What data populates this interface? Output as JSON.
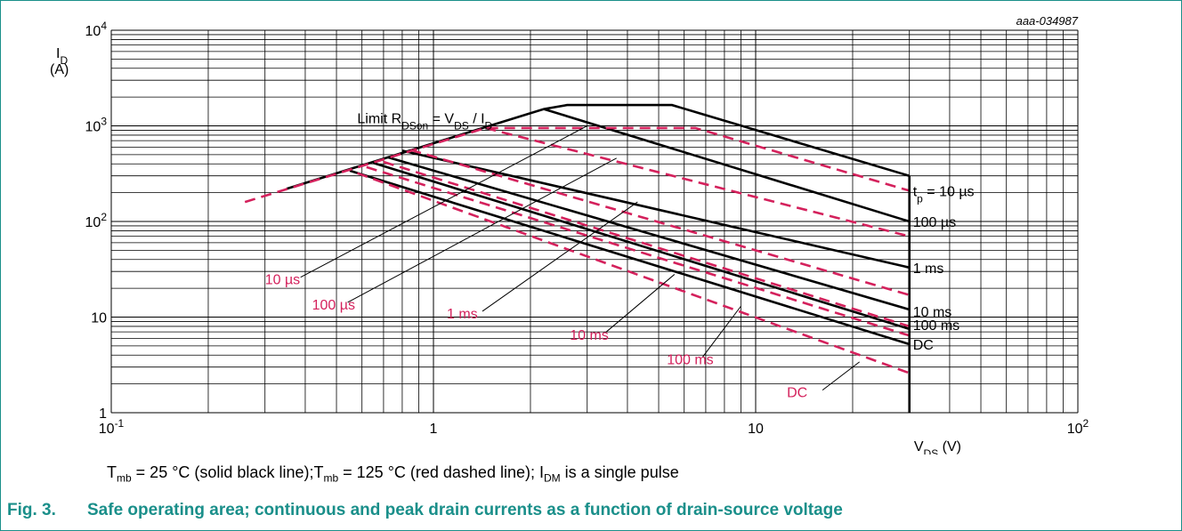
{
  "chart_data": {
    "type": "line",
    "figure_id": "aaa-034987",
    "xlabel_main": "V",
    "xlabel_sub": "DS",
    "xlabel_unit": " (V)",
    "ylabel_main": "I",
    "ylabel_sub": "D",
    "ylabel_unit": "(A)",
    "x_scale": "log",
    "y_scale": "log",
    "xlim": [
      0.1,
      100
    ],
    "ylim": [
      1,
      10000
    ],
    "grid": true,
    "x_ticks": [
      {
        "base": "10",
        "exp": "-1"
      },
      {
        "base": "1",
        "exp": ""
      },
      {
        "base": "10",
        "exp": ""
      },
      {
        "base": "10",
        "exp": "2"
      }
    ],
    "y_ticks": [
      {
        "base": "10",
        "exp": "4"
      },
      {
        "base": "10",
        "exp": "3"
      },
      {
        "base": "10",
        "exp": "2"
      },
      {
        "base": "10",
        "exp": ""
      },
      {
        "base": "1",
        "exp": ""
      }
    ],
    "limit_label": {
      "pre": "Limit R",
      "s1": "DSon",
      "mid": " = V",
      "s2": "DS",
      "mid2": " / I",
      "s3": "D"
    },
    "series": [
      {
        "name": "10 µs",
        "color": "#000000",
        "dash": false,
        "points": [
          [
            0.35,
            220
          ],
          [
            2.2,
            1500
          ],
          [
            2.6,
            1650
          ],
          [
            5.5,
            1650
          ],
          [
            30,
            300
          ]
        ]
      },
      {
        "name": "100 µs",
        "color": "#000000",
        "dash": false,
        "points": [
          [
            2.2,
            1500
          ],
          [
            30,
            100
          ]
        ]
      },
      {
        "name": "1 ms",
        "color": "#000000",
        "dash": false,
        "points": [
          [
            0.8,
            550
          ],
          [
            30,
            33
          ]
        ]
      },
      {
        "name": "10 ms",
        "color": "#000000",
        "dash": false,
        "points": [
          [
            0.72,
            470
          ],
          [
            30,
            12
          ]
        ]
      },
      {
        "name": "100 ms",
        "color": "#000000",
        "dash": false,
        "points": [
          [
            0.65,
            410
          ],
          [
            30,
            7.5
          ]
        ]
      },
      {
        "name": "DC",
        "color": "#000000",
        "dash": false,
        "points": [
          [
            0.55,
            340
          ],
          [
            30,
            5.2
          ]
        ]
      },
      {
        "name": "10 µs",
        "color": "#d4215c",
        "dash": true,
        "points": [
          [
            0.26,
            160
          ],
          [
            1.45,
            950
          ],
          [
            6.5,
            950
          ],
          [
            30,
            210
          ]
        ]
      },
      {
        "name": "100 µs",
        "color": "#d4215c",
        "dash": true,
        "points": [
          [
            1.45,
            950
          ],
          [
            30,
            70
          ]
        ]
      },
      {
        "name": "1 ms",
        "color": "#d4215c",
        "dash": true,
        "points": [
          [
            0.85,
            560
          ],
          [
            30,
            17
          ]
        ]
      },
      {
        "name": "10 ms",
        "color": "#d4215c",
        "dash": true,
        "points": [
          [
            0.7,
            420
          ],
          [
            30,
            8
          ]
        ]
      },
      {
        "name": "100 ms",
        "color": "#d4215c",
        "dash": true,
        "points": [
          [
            0.62,
            370
          ],
          [
            30,
            6.4
          ]
        ]
      },
      {
        "name": "DC",
        "color": "#d4215c",
        "dash": true,
        "points": [
          [
            0.58,
            320
          ],
          [
            30,
            2.6
          ]
        ]
      }
    ],
    "vertical_limit": {
      "x": 30,
      "y_from": 1,
      "y_to": 300
    },
    "black_labels": [
      {
        "text": "10 µs",
        "pre": "t",
        "sub": "p",
        "post": " = 10 µs",
        "x": 30,
        "y": 210
      },
      {
        "text": "100 µs",
        "x": 30,
        "y": 100
      },
      {
        "text": "1 ms",
        "x": 30,
        "y": 33
      },
      {
        "text": "10 ms",
        "x": 30,
        "y": 11.5
      },
      {
        "text": "100 ms",
        "x": 30,
        "y": 8.3
      },
      {
        "text": "DC",
        "x": 30,
        "y": 5.2
      }
    ],
    "red_labels": [
      {
        "text": "10 µs",
        "x": 0.3,
        "y": 22,
        "lx": 3.0,
        "ly": 1000
      },
      {
        "text": "100 µs",
        "x": 0.42,
        "y": 12,
        "lx": 3.7,
        "ly": 460
      },
      {
        "text": "1 ms",
        "x": 1.1,
        "y": 9.7,
        "lx": 4.3,
        "ly": 160
      },
      {
        "text": "10 ms",
        "x": 2.65,
        "y": 5.8,
        "lx": 5.6,
        "ly": 28
      },
      {
        "text": "100 ms",
        "x": 5.3,
        "y": 3.2,
        "lx": 9.0,
        "ly": 13
      },
      {
        "text": "DC",
        "x": 12.5,
        "y": 1.45,
        "lx": 21.0,
        "ly": 3.4
      }
    ]
  },
  "note": {
    "t1": "T",
    "t1_sub": "mb",
    "t1_rest": " = 25 °C (solid black line);",
    "t2": "T",
    "t2_sub": "mb",
    "t2_rest": " = 125 °C (red dashed line); I",
    "t3_sub": "DM",
    "t3_rest": " is a single pulse"
  },
  "caption": {
    "number": "Fig. 3.",
    "text": "Safe operating area; continuous and peak drain currents as a function of drain-source voltage"
  }
}
